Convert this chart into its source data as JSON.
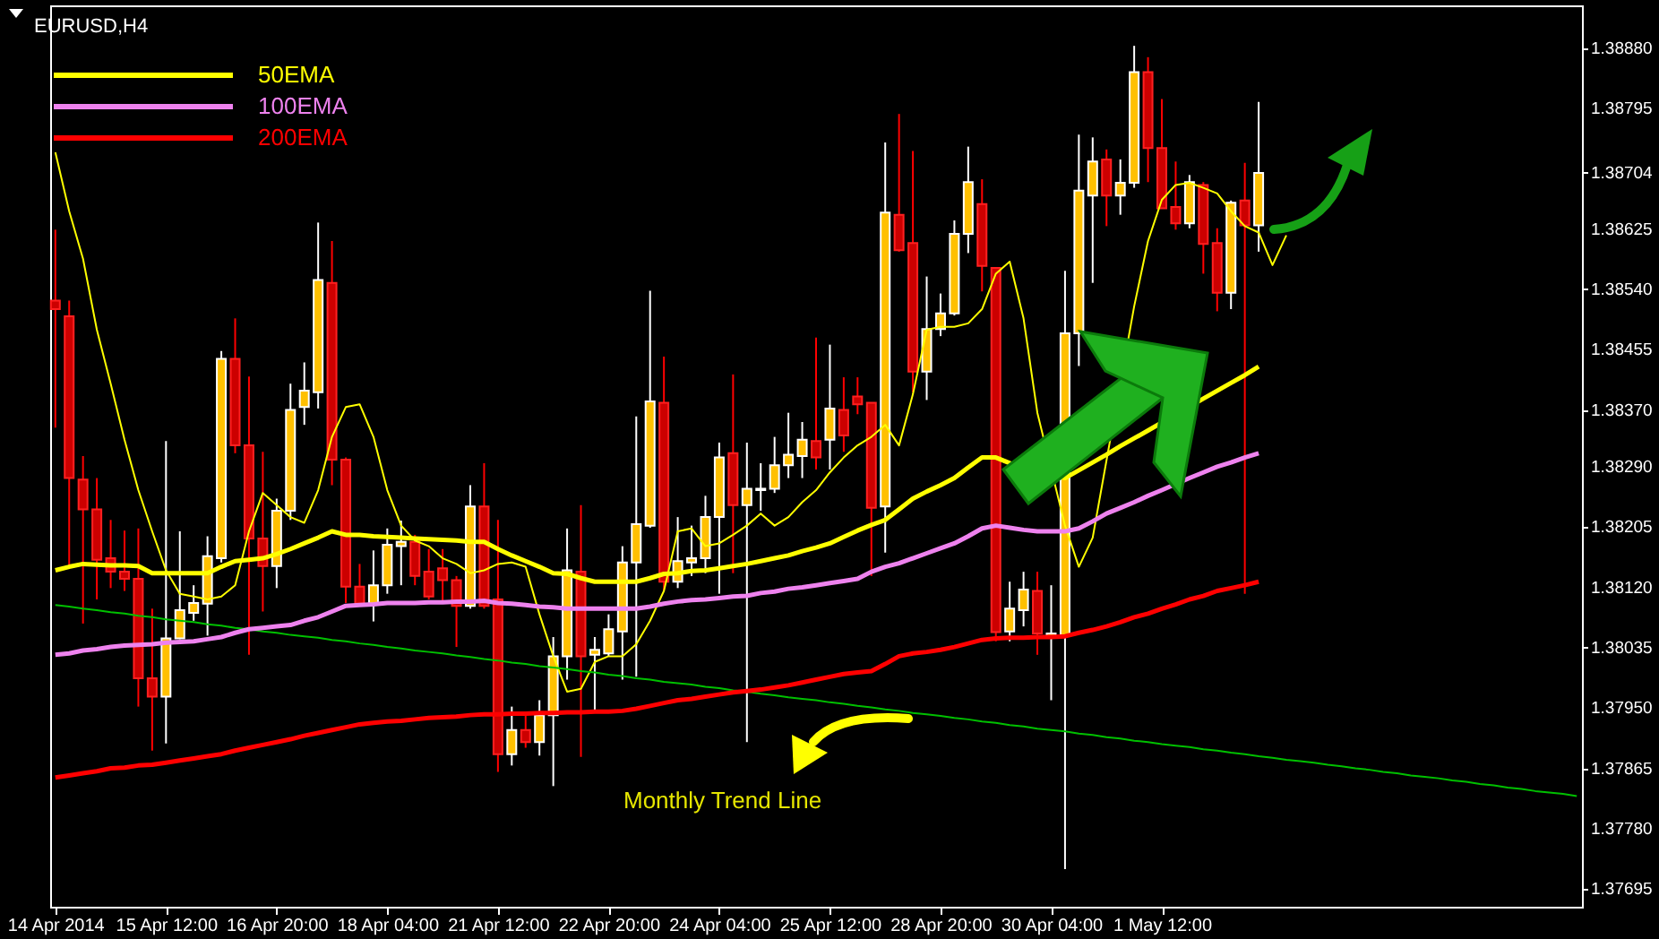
{
  "chart_data": {
    "type": "candlestick",
    "title": "EURUSD,H4",
    "annotations": [
      "Monthly Trend Line"
    ],
    "categories": [
      "14 Apr 2014",
      null,
      null,
      null,
      null,
      null,
      null,
      null,
      "15 Apr 12:00",
      null,
      null,
      null,
      null,
      null,
      null,
      null,
      "16 Apr 20:00",
      null,
      null,
      null,
      null,
      null,
      null,
      null,
      "18 Apr 04:00",
      null,
      null,
      null,
      null,
      null,
      null,
      null,
      "21 Apr 12:00",
      null,
      null,
      null,
      null,
      null,
      null,
      null,
      "22 Apr 20:00",
      null,
      null,
      null,
      null,
      null,
      null,
      null,
      "24 Apr 04:00",
      null,
      null,
      null,
      null,
      null,
      null,
      null,
      "25 Apr 12:00",
      null,
      null,
      null,
      null,
      null,
      null,
      null,
      "28 Apr 20:00",
      null,
      null,
      null,
      null,
      null,
      null,
      null,
      "30 Apr 04:00",
      null,
      null,
      null,
      null,
      null,
      null,
      null,
      "1 May 12:00",
      null,
      null,
      null,
      null,
      null,
      null,
      null,
      null,
      null,
      null,
      null,
      null,
      null,
      null,
      null,
      null,
      null,
      null,
      null,
      null,
      null,
      null,
      null,
      null,
      null,
      null,
      null,
      null,
      null,
      null
    ],
    "ohlc": [
      [
        1.38524,
        1.38624,
        1.38345,
        1.38512
      ],
      [
        1.38502,
        1.38524,
        1.38149,
        1.38274
      ],
      [
        1.38272,
        1.38305,
        1.38069,
        1.3823
      ],
      [
        1.3823,
        1.38274,
        1.38103,
        1.38159
      ],
      [
        1.38161,
        1.38215,
        1.38119,
        1.38142
      ],
      [
        1.38142,
        1.382,
        1.38115,
        1.38132
      ],
      [
        1.38132,
        1.38203,
        1.37952,
        1.37992
      ],
      [
        1.37992,
        1.3809,
        1.3789,
        1.37966
      ],
      [
        1.37966,
        1.38326,
        1.379,
        1.38048
      ],
      [
        1.38048,
        1.38199,
        1.38047,
        1.38088
      ],
      [
        1.38084,
        1.38123,
        1.38073,
        1.38098
      ],
      [
        1.38097,
        1.38192,
        1.38052,
        1.38164
      ],
      [
        1.38161,
        1.38453,
        1.38155,
        1.38442
      ],
      [
        1.38442,
        1.38499,
        1.38309,
        1.3832
      ],
      [
        1.3832,
        1.38417,
        1.38025,
        1.38189
      ],
      [
        1.38189,
        1.38311,
        1.38086,
        1.3815
      ],
      [
        1.3815,
        1.38245,
        1.38119,
        1.38228
      ],
      [
        1.38228,
        1.38407,
        1.38215,
        1.3837
      ],
      [
        1.38374,
        1.38437,
        1.38349,
        1.38397
      ],
      [
        1.38395,
        1.38634,
        1.38372,
        1.38553
      ],
      [
        1.38549,
        1.38608,
        1.38264,
        1.383
      ],
      [
        1.383,
        1.38303,
        1.38098,
        1.38121
      ],
      [
        1.38121,
        1.38153,
        1.38094,
        1.38097
      ],
      [
        1.38097,
        1.38172,
        1.38072,
        1.38123
      ],
      [
        1.38123,
        1.38203,
        1.38111,
        1.3818
      ],
      [
        1.38178,
        1.38214,
        1.38123,
        1.38184
      ],
      [
        1.38184,
        1.38194,
        1.38123,
        1.38136
      ],
      [
        1.38142,
        1.38174,
        1.38103,
        1.38107
      ],
      [
        1.38147,
        1.38174,
        1.38097,
        1.3813
      ],
      [
        1.3813,
        1.38136,
        1.38036,
        1.38094
      ],
      [
        1.38094,
        1.38264,
        1.3809,
        1.38234
      ],
      [
        1.38234,
        1.38295,
        1.3809,
        1.38094
      ],
      [
        1.38103,
        1.38215,
        1.3786,
        1.37885
      ],
      [
        1.37885,
        1.37952,
        1.37869,
        1.37919
      ],
      [
        1.37919,
        1.37944,
        1.37894,
        1.37902
      ],
      [
        1.37902,
        1.37961,
        1.37883,
        1.3794
      ],
      [
        1.3794,
        1.3805,
        1.3784,
        1.38023
      ],
      [
        1.38023,
        1.38203,
        1.3799,
        1.38144
      ],
      [
        1.38142,
        1.38236,
        1.37881,
        1.38023
      ],
      [
        1.38025,
        1.3805,
        1.37944,
        1.38032
      ],
      [
        1.38027,
        1.38082,
        1.38023,
        1.38061
      ],
      [
        1.38058,
        1.38178,
        1.3799,
        1.38155
      ],
      [
        1.38155,
        1.38361,
        1.37994,
        1.38209
      ],
      [
        1.38207,
        1.38538,
        1.38204,
        1.38382
      ],
      [
        1.3838,
        1.38445,
        1.38115,
        1.38128
      ],
      [
        1.38128,
        1.38219,
        1.38119,
        1.38157
      ],
      [
        1.38155,
        1.38207,
        1.38136,
        1.38161
      ],
      [
        1.38161,
        1.38249,
        1.3814,
        1.38219
      ],
      [
        1.38219,
        1.38324,
        1.38111,
        1.38303
      ],
      [
        1.38309,
        1.3842,
        1.3814,
        1.38236
      ],
      [
        1.38236,
        1.38324,
        1.37902,
        1.38259
      ],
      [
        1.38257,
        1.38295,
        1.38228,
        1.38259
      ],
      [
        1.38259,
        1.38332,
        1.38253,
        1.38292
      ],
      [
        1.38292,
        1.38366,
        1.38274,
        1.38307
      ],
      [
        1.38305,
        1.38353,
        1.38274,
        1.38328
      ],
      [
        1.38326,
        1.38472,
        1.38286,
        1.38303
      ],
      [
        1.38328,
        1.38462,
        1.38286,
        1.38372
      ],
      [
        1.3837,
        1.38416,
        1.38311,
        1.38334
      ],
      [
        1.38389,
        1.38416,
        1.38364,
        1.38378
      ],
      [
        1.3838,
        1.3838,
        1.38136,
        1.38232
      ],
      [
        1.38234,
        1.38747,
        1.38169,
        1.38648
      ],
      [
        1.38645,
        1.38787,
        1.38593,
        1.38595
      ],
      [
        1.38605,
        1.38735,
        1.38395,
        1.38424
      ],
      [
        1.38424,
        1.38558,
        1.38384,
        1.38484
      ],
      [
        1.38484,
        1.38534,
        1.38474,
        1.38506
      ],
      [
        1.38506,
        1.38637,
        1.38503,
        1.38618
      ],
      [
        1.38618,
        1.38741,
        1.38591,
        1.38691
      ],
      [
        1.3866,
        1.38695,
        1.38537,
        1.38573
      ],
      [
        1.3857,
        1.3857,
        1.38044,
        1.38057
      ],
      [
        1.38058,
        1.38128,
        1.38044,
        1.3809
      ],
      [
        1.38088,
        1.38142,
        1.38065,
        1.38117
      ],
      [
        1.38115,
        1.38142,
        1.38025,
        1.38055
      ],
      [
        1.3805,
        1.38123,
        1.37961,
        1.38055
      ],
      [
        1.38052,
        1.38566,
        1.37723,
        1.38478
      ],
      [
        1.38478,
        1.38758,
        1.38432,
        1.38679
      ],
      [
        1.38672,
        1.38754,
        1.38549,
        1.3872
      ],
      [
        1.38723,
        1.38737,
        1.38629,
        1.38672
      ],
      [
        1.38672,
        1.38723,
        1.38645,
        1.3869
      ],
      [
        1.3869,
        1.38883,
        1.38683,
        1.38846
      ],
      [
        1.38846,
        1.38867,
        1.38691,
        1.38739
      ],
      [
        1.38739,
        1.38808,
        1.38654,
        1.38654
      ],
      [
        1.38656,
        1.3872,
        1.38624,
        1.38633
      ],
      [
        1.38633,
        1.38701,
        1.38626,
        1.38691
      ],
      [
        1.38687,
        1.38691,
        1.38562,
        1.38604
      ],
      [
        1.38605,
        1.38626,
        1.38509,
        1.38535
      ],
      [
        1.38535,
        1.38665,
        1.38512,
        1.38662
      ],
      [
        1.38665,
        1.38718,
        1.38111,
        1.3863
      ],
      [
        1.3863,
        1.38804,
        1.38593,
        1.38704
      ],
      null,
      null,
      null,
      null,
      null,
      null,
      null,
      null,
      null,
      null,
      null,
      null,
      null,
      null,
      null,
      null,
      null,
      null,
      null,
      null,
      null,
      null,
      null
    ],
    "series": [
      {
        "type": "line",
        "name": "50EMA",
        "color": "#ffff00",
        "values": [
          1.38144,
          1.38149,
          1.38153,
          1.38152,
          1.38151,
          1.38151,
          1.3815,
          1.3814,
          1.3814,
          1.3814,
          1.3814,
          1.3814,
          1.38149,
          1.38157,
          1.38159,
          1.38161,
          1.38167,
          1.38174,
          1.38182,
          1.3819,
          1.38199,
          1.38194,
          1.38194,
          1.38192,
          1.38191,
          1.3819,
          1.38189,
          1.38188,
          1.38187,
          1.38186,
          1.38184,
          1.38184,
          1.38174,
          1.38165,
          1.38157,
          1.38149,
          1.3814,
          1.38139,
          1.38133,
          1.38128,
          1.38128,
          1.38128,
          1.38128,
          1.38133,
          1.38139,
          1.3814,
          1.38143,
          1.38144,
          1.38147,
          1.3815,
          1.38153,
          1.38157,
          1.38161,
          1.38165,
          1.38171,
          1.38176,
          1.38182,
          1.38191,
          1.382,
          1.38208,
          1.38215,
          1.3823,
          1.38245,
          1.38255,
          1.38264,
          1.38274,
          1.38289,
          1.38303,
          1.38303,
          1.38295,
          null,
          null,
          null,
          1.38274,
          1.38285,
          1.38296,
          1.38307,
          1.38319,
          1.3833,
          1.38341,
          null,
          null,
          null,
          1.38386,
          1.38397,
          1.38408,
          1.38419,
          1.38431,
          null,
          null,
          null,
          null,
          null,
          null,
          null,
          null,
          null,
          null,
          null,
          null,
          null,
          null,
          null,
          null,
          null,
          null,
          null,
          null,
          null,
          null,
          null
        ]
      },
      {
        "type": "line",
        "name": "100EMA",
        "color": "#ee82ee",
        "values": [
          1.38025,
          1.38027,
          1.38031,
          1.38033,
          1.38036,
          1.38038,
          1.38039,
          1.3804,
          1.38042,
          1.38043,
          1.38044,
          1.38047,
          1.3805,
          1.38056,
          1.38061,
          1.38063,
          1.38065,
          1.38067,
          1.38073,
          1.38078,
          1.38086,
          1.38094,
          1.38095,
          1.38096,
          1.38098,
          1.38098,
          1.38098,
          1.38099,
          1.38099,
          1.381,
          1.381,
          1.38101,
          1.38098,
          1.38097,
          1.38095,
          1.38093,
          1.38092,
          1.3809,
          1.3809,
          1.3809,
          1.3809,
          1.3809,
          1.3809,
          1.38093,
          1.38097,
          1.381,
          1.38102,
          1.38103,
          1.38105,
          1.38107,
          1.38108,
          1.38112,
          1.38114,
          1.38118,
          1.3812,
          1.38123,
          1.38126,
          1.38129,
          1.38132,
          1.38142,
          1.38149,
          1.38154,
          1.38161,
          1.38168,
          1.38175,
          1.38182,
          1.38192,
          1.38203,
          1.38207,
          1.38204,
          1.38201,
          1.38199,
          1.38199,
          1.38199,
          1.38203,
          1.38213,
          1.38224,
          1.38232,
          1.3824,
          1.38249,
          1.38257,
          null,
          1.38274,
          1.38282,
          1.3829,
          1.38296,
          1.38303,
          1.38309,
          null,
          null,
          null,
          null,
          null,
          null,
          null,
          null,
          null,
          null,
          null,
          null,
          null,
          null,
          null,
          null,
          null,
          null,
          null,
          null,
          null,
          null,
          null
        ]
      },
      {
        "type": "line",
        "name": "200EMA",
        "color": "#ff0000",
        "values": [
          1.37852,
          1.37855,
          1.37858,
          1.37861,
          1.37865,
          1.37866,
          1.37869,
          1.3787,
          1.37873,
          1.37876,
          1.37879,
          1.37882,
          1.37885,
          1.3789,
          1.37894,
          1.37898,
          1.37902,
          1.37906,
          1.37911,
          1.37915,
          1.37919,
          1.37923,
          1.37927,
          1.37929,
          1.37931,
          1.37932,
          1.37934,
          1.37936,
          1.37937,
          1.37938,
          1.3794,
          1.37941,
          1.37941,
          1.37942,
          1.37942,
          1.37943,
          1.37943,
          1.37944,
          1.37944,
          1.37945,
          1.37945,
          1.37946,
          1.37949,
          1.37953,
          1.37957,
          1.37961,
          1.37963,
          1.37966,
          1.37969,
          1.37972,
          1.37974,
          1.37976,
          1.37979,
          1.37982,
          1.37986,
          1.3799,
          1.37994,
          1.37998,
          1.38,
          1.38002,
          1.38012,
          1.38023,
          1.38027,
          1.38029,
          1.38032,
          1.38036,
          1.38041,
          1.38046,
          1.38048,
          1.38049,
          1.38049,
          1.3805,
          1.3805,
          1.38051,
          1.38056,
          1.3806,
          1.38065,
          1.38071,
          1.38078,
          1.38083,
          1.3809,
          1.38096,
          1.38103,
          1.38108,
          1.38115,
          1.38119,
          1.38123,
          1.38128,
          null,
          null,
          null,
          null,
          null,
          null,
          null,
          null,
          null,
          null,
          null,
          null,
          null,
          null,
          null,
          null,
          null,
          null,
          null,
          null,
          null,
          null,
          null
        ]
      },
      {
        "type": "line",
        "color": "#ffff00",
        "values": [
          1.38733,
          1.3865,
          1.38583,
          1.38483,
          1.38407,
          1.38328,
          1.38257,
          1.38199,
          1.38144,
          1.38111,
          1.38107,
          1.38103,
          1.38107,
          1.38123,
          1.38199,
          1.38253,
          1.38236,
          1.38219,
          1.38211,
          1.38257,
          1.38332,
          1.38374,
          1.38378,
          1.38332,
          1.38257,
          1.38207,
          1.38186,
          1.38178,
          1.38161,
          1.38153,
          1.3814,
          1.38144,
          1.38153,
          1.38155,
          1.38149,
          1.38082,
          1.38023,
          1.37973,
          1.37977,
          1.38015,
          1.38023,
          1.38023,
          1.3804,
          1.38073,
          1.38115,
          1.38199,
          1.38203,
          1.38178,
          1.38182,
          1.38194,
          1.38207,
          1.38224,
          1.38207,
          1.38219,
          1.3824,
          1.38257,
          1.38282,
          1.38303,
          1.3832,
          1.38332,
          1.38349,
          1.3832,
          1.38392,
          1.38483,
          1.38487,
          1.38487,
          1.38492,
          1.38512,
          1.38562,
          1.38579,
          1.38499,
          1.38366,
          null,
          1.38207,
          1.38149,
          1.3819,
          1.38299,
          null,
          1.38516,
          1.38608,
          1.38666,
          1.38687,
          1.3869,
          1.38683,
          1.38675,
          1.3865,
          1.38629,
          1.3862,
          1.38574,
          1.38616,
          null,
          null,
          null,
          null,
          null,
          null,
          null,
          null,
          null,
          null,
          null,
          null,
          null,
          null,
          null,
          null,
          null,
          null,
          null,
          null,
          null
        ]
      },
      {
        "type": "line",
        "color": "#00c000",
        "values": [
          1.38095,
          1.38093,
          1.3809,
          1.38088,
          1.38085,
          1.38083,
          1.3808,
          1.38078,
          1.38075,
          1.38073,
          1.38071,
          1.38068,
          1.38066,
          1.38063,
          1.38061,
          1.38058,
          1.38056,
          1.38053,
          1.38051,
          1.38049,
          1.38046,
          1.38044,
          1.38041,
          1.38039,
          1.38036,
          1.38034,
          1.38031,
          1.38029,
          1.38027,
          1.38024,
          1.38022,
          1.38019,
          1.38017,
          1.38014,
          1.38012,
          1.38009,
          1.38007,
          1.38005,
          1.38002,
          1.38,
          1.37997,
          1.37995,
          1.37992,
          1.3799,
          1.37987,
          1.37985,
          1.37983,
          1.3798,
          1.37978,
          1.37975,
          1.37973,
          1.3797,
          1.37968,
          1.37965,
          1.37963,
          1.37961,
          1.37958,
          1.37956,
          1.37953,
          1.37951,
          1.37948,
          1.37946,
          1.37943,
          1.37941,
          1.37939,
          1.37936,
          1.37934,
          1.37931,
          1.37929,
          1.37926,
          1.37924,
          1.37921,
          1.37919,
          1.37917,
          1.37914,
          1.37912,
          1.37909,
          1.37907,
          1.37904,
          1.37902,
          1.37899,
          1.37897,
          1.37895,
          1.37892,
          1.3789,
          1.37887,
          1.37885,
          1.37882,
          1.3788,
          1.37877,
          1.37875,
          1.37873,
          1.3787,
          1.37868,
          1.37865,
          1.37863,
          1.3786,
          1.37858,
          1.37855,
          1.37853,
          1.37851,
          1.37848,
          1.37846,
          1.37843,
          1.37841,
          1.37838,
          1.37836,
          1.37833,
          1.37831,
          1.37829,
          1.37826
        ]
      }
    ],
    "ylim": [
      1.3767,
      1.3894
    ],
    "yticks": [
      {
        "value": 1.3888,
        "label": "1.38880"
      },
      {
        "value": 1.38795,
        "label": "1.38795"
      },
      {
        "value": 1.38704,
        "label": "1.38704"
      },
      {
        "value": 1.38625,
        "label": "1.38625"
      },
      {
        "value": 1.3854,
        "label": "1.38540"
      },
      {
        "value": 1.38455,
        "label": "1.38455"
      },
      {
        "value": 1.3837,
        "label": "1.38370"
      },
      {
        "value": 1.3829,
        "label": "1.38290"
      },
      {
        "value": 1.38205,
        "label": "1.38205"
      },
      {
        "value": 1.3812,
        "label": "1.38120"
      },
      {
        "value": 1.38035,
        "label": "1.38035"
      },
      {
        "value": 1.3795,
        "label": "1.37950"
      },
      {
        "value": 1.37865,
        "label": "1.37865"
      },
      {
        "value": 1.3778,
        "label": "1.37780"
      },
      {
        "value": 1.37695,
        "label": "1.37695"
      }
    ],
    "legend": "top left"
  }
}
